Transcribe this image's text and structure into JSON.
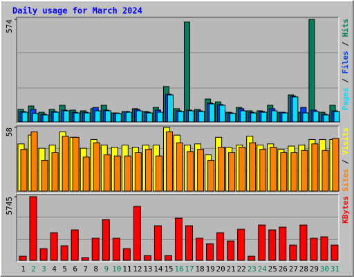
{
  "title": "Daily usage for March 2024",
  "legend_separator": "/",
  "chart_data": [
    {
      "type": "bar",
      "ylim": [
        0,
        574
      ],
      "yticks": [
        574
      ],
      "series": [
        {
          "name": "Pages",
          "color": "#00e0ff",
          "values": [
            54,
            47,
            39,
            54,
            62,
            50,
            50,
            62,
            62,
            47,
            54,
            62,
            50,
            54,
            151,
            58,
            62,
            58,
            101,
            93,
            47,
            62,
            50,
            54,
            62,
            50,
            140,
            50,
            58,
            39,
            58
          ]
        },
        {
          "name": "Files",
          "color": "#0040ff",
          "values": [
            58,
            70,
            43,
            58,
            66,
            54,
            54,
            81,
            66,
            50,
            58,
            70,
            54,
            66,
            155,
            62,
            66,
            62,
            105,
            97,
            50,
            74,
            54,
            58,
            74,
            54,
            144,
            81,
            66,
            43,
            62
          ]
        },
        {
          "name": "Hits",
          "color": "#00805c",
          "values": [
            70,
            89,
            54,
            70,
            93,
            66,
            62,
            74,
            93,
            50,
            58,
            74,
            58,
            81,
            198,
            74,
            559,
            70,
            128,
            112,
            54,
            81,
            62,
            62,
            93,
            54,
            151,
            54,
            574,
            54,
            93
          ]
        }
      ]
    },
    {
      "type": "bar",
      "ylim": [
        0,
        58
      ],
      "yticks": [
        58
      ],
      "series": [
        {
          "name": "Sites",
          "color": "#ff8000",
          "values": [
            38,
            54,
            28,
            35,
            50,
            49,
            31,
            44,
            33,
            32,
            32,
            35,
            38,
            32,
            54,
            44,
            36,
            38,
            28,
            40,
            35,
            40,
            44,
            38,
            40,
            35,
            35,
            37,
            43,
            37,
            48
          ]
        },
        {
          "name": "Visits",
          "color": "#ffff00",
          "values": [
            43,
            51,
            39,
            42,
            54,
            49,
            39,
            47,
            42,
            40,
            42,
            40,
            42,
            42,
            58,
            51,
            42,
            43,
            33,
            49,
            40,
            42,
            50,
            42,
            43,
            38,
            41,
            42,
            47,
            47,
            47
          ]
        }
      ]
    },
    {
      "type": "bar",
      "ylim": [
        0,
        5745
      ],
      "yticks": [
        5745
      ],
      "categories": [
        "1",
        "2",
        "3",
        "4",
        "5",
        "6",
        "7",
        "8",
        "9",
        "10",
        "11",
        "12",
        "13",
        "14",
        "15",
        "16",
        "17",
        "18",
        "19",
        "20",
        "21",
        "22",
        "23",
        "24",
        "25",
        "26",
        "27",
        "28",
        "29",
        "30",
        "31"
      ],
      "category_colors": [
        "#000000",
        "#00805c",
        "#00805c",
        "#000000",
        "#000000",
        "#000000",
        "#000000",
        "#000000",
        "#00805c",
        "#00805c",
        "#000000",
        "#000000",
        "#000000",
        "#000000",
        "#000000",
        "#00805c",
        "#00805c",
        "#000000",
        "#000000",
        "#000000",
        "#000000",
        "#000000",
        "#00805c",
        "#00805c",
        "#000000",
        "#000000",
        "#000000",
        "#000000",
        "#000000",
        "#00805c",
        "#00805c"
      ],
      "series": [
        {
          "name": "KBytes",
          "color": "#ff0000",
          "values": [
            374,
            5745,
            1061,
            2496,
            1310,
            2746,
            250,
            1997,
            3682,
            1997,
            1061,
            4868,
            437,
            3120,
            437,
            3807,
            3120,
            1997,
            1498,
            2496,
            1747,
            2808,
            374,
            3182,
            2746,
            2995,
            1373,
            3182,
            1997,
            2122,
            1373
          ]
        }
      ]
    }
  ]
}
